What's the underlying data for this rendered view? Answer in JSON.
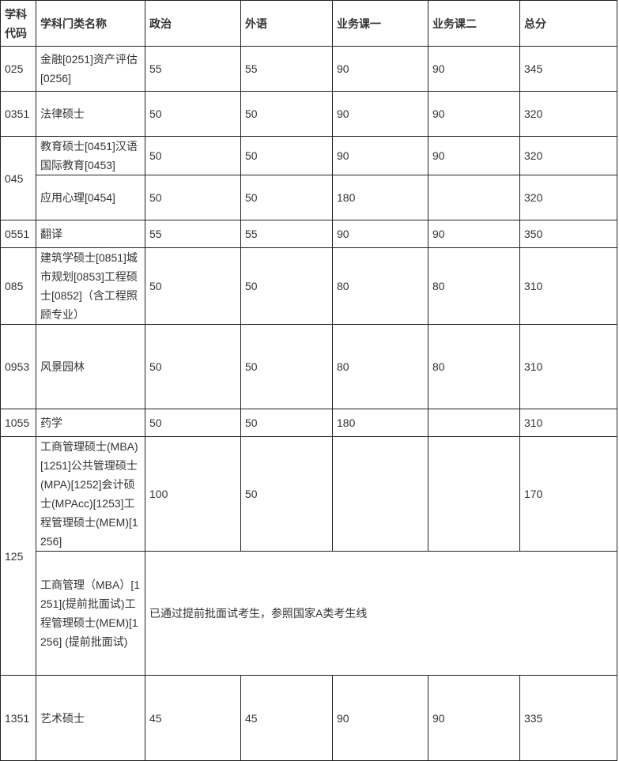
{
  "headers": [
    "学科代码",
    "学科门类名称",
    "政治",
    "外语",
    "业务课一",
    "业务课二",
    "总分"
  ],
  "rows": [
    {
      "code": "025",
      "code_rowspan": 1,
      "name": "金融[0251]资产评估[0256]",
      "scores": [
        "55",
        "55",
        "90",
        "90",
        "345"
      ]
    },
    {
      "code": "0351",
      "code_rowspan": 1,
      "name": "法律硕士",
      "scores": [
        "50",
        "50",
        "90",
        "90",
        "320"
      ]
    },
    {
      "code": "045",
      "code_rowspan": 2,
      "name": "教育硕士[0451]汉语国际教育[0453]",
      "scores": [
        "50",
        "50",
        "90",
        "90",
        "320"
      ]
    },
    {
      "code": null,
      "name": "应用心理[0454]",
      "scores": [
        "50",
        "50",
        "180",
        "",
        "320"
      ]
    },
    {
      "code": "0551",
      "code_rowspan": 1,
      "name": "翻译",
      "scores": [
        "55",
        "55",
        "90",
        "90",
        "350"
      ]
    },
    {
      "code": "085",
      "code_rowspan": 1,
      "name": "建筑学硕士[0851]城市规划[0853]工程硕士[0852]（含工程照顾专业）",
      "scores": [
        "50",
        "50",
        "80",
        "80",
        "310"
      ]
    },
    {
      "code": "0953",
      "code_rowspan": 1,
      "name": "风景园林",
      "scores": [
        "50",
        "50",
        "80",
        "80",
        "310"
      ]
    },
    {
      "code": "1055",
      "code_rowspan": 1,
      "name": "药学",
      "scores": [
        "50",
        "50",
        "180",
        "",
        "310"
      ]
    },
    {
      "code": "125",
      "code_rowspan": 2,
      "name": "工商管理硕士(MBA)[1251]公共管理硕士(MPA)[1252]会计硕士(MPAcc)[1253]工程管理硕士(MEM)[1256]",
      "scores": [
        "100",
        "50",
        "",
        "",
        "170"
      ]
    },
    {
      "code": null,
      "name": "工商管理（MBA）[1251](提前批面试)工程管理硕士(MEM)[1256] (提前批面试)",
      "merged_note": "已通过提前批面试考生，参照国家A类考生线"
    },
    {
      "code": "1351",
      "code_rowspan": 1,
      "name": "艺术硕士",
      "scores": [
        "45",
        "45",
        "90",
        "90",
        "335"
      ]
    }
  ]
}
